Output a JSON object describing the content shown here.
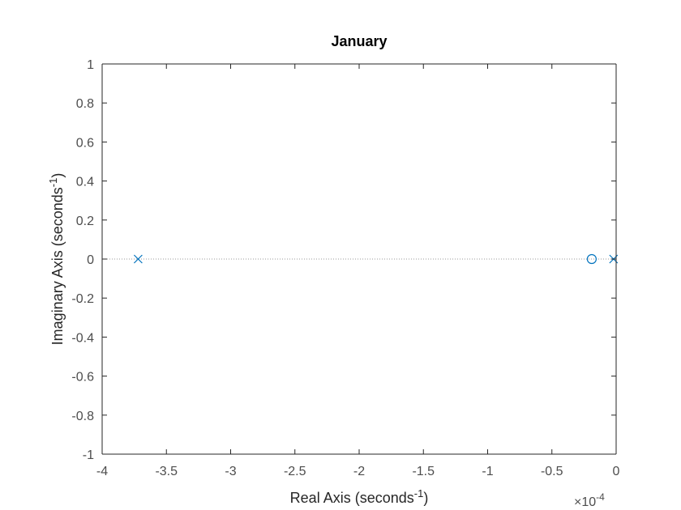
{
  "chart_data": {
    "type": "scatter",
    "title": "January",
    "xlabel": {
      "text": "Real Axis (seconds",
      "superscript": "-1",
      "suffix": ")"
    },
    "ylabel": {
      "text": "Imaginary Axis (seconds",
      "superscript": "-1",
      "suffix": ")"
    },
    "x_exponent": {
      "prefix": "×10",
      "power": "-4"
    },
    "xlim": [
      -4,
      0
    ],
    "ylim": [
      -1,
      1
    ],
    "x_ticks": [
      -4,
      -3.5,
      -3,
      -2.5,
      -2,
      -1.5,
      -1,
      -0.5,
      0
    ],
    "x_tick_labels": [
      "-4",
      "-3.5",
      "-3",
      "-2.5",
      "-2",
      "-1.5",
      "-1",
      "-0.5",
      "0"
    ],
    "y_ticks": [
      -1,
      -0.8,
      -0.6,
      -0.4,
      -0.2,
      0,
      0.2,
      0.4,
      0.6,
      0.8,
      1
    ],
    "y_tick_labels": [
      "-1",
      "-0.8",
      "-0.6",
      "-0.4",
      "-0.2",
      "0",
      "0.2",
      "0.4",
      "0.6",
      "0.8",
      "1"
    ],
    "grid": false,
    "reference_line": {
      "y": 0,
      "style": "dotted"
    },
    "series": [
      {
        "marker": "x",
        "color": "#0072bd",
        "points": [
          {
            "x": -3.72,
            "y": 0
          },
          {
            "x": -0.02,
            "y": 0
          }
        ]
      },
      {
        "marker": "o",
        "color": "#0072bd",
        "points": [
          {
            "x": -0.19,
            "y": 0
          }
        ]
      }
    ]
  }
}
